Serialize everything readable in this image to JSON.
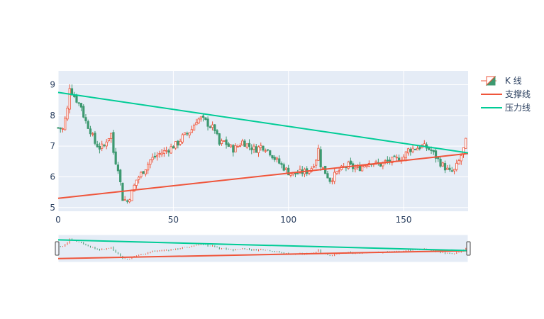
{
  "chart_data": {
    "type": "candlestick",
    "title": "",
    "xlabel": "",
    "ylabel": "",
    "xlim": [
      0,
      178
    ],
    "ylim": [
      4.88,
      9.45
    ],
    "x_ticks": [
      0,
      50,
      100,
      150
    ],
    "y_ticks": [
      5,
      6,
      7,
      8,
      9
    ],
    "grid": true,
    "legend_position": "top-right",
    "legend": [
      {
        "label": "K 线",
        "kind": "candlestick"
      },
      {
        "label": "支撑线",
        "kind": "line",
        "color": "#EF553B"
      },
      {
        "label": "压力线",
        "kind": "line",
        "color": "#00CC96"
      }
    ],
    "colors": {
      "increasing": "#EF553B",
      "decreasing": "#3D9970",
      "support": "#EF553B",
      "resistance": "#00CC96",
      "plot_bg": "#E5ECF6",
      "grid": "#ffffff"
    },
    "lines": {
      "support": {
        "x": [
          0,
          178
        ],
        "y": [
          5.3,
          6.76
        ]
      },
      "resistance": {
        "x": [
          0,
          178
        ],
        "y": [
          8.75,
          6.78
        ]
      }
    },
    "close_anchors": {
      "x": [
        0,
        2,
        4,
        5,
        6,
        8,
        10,
        11,
        12,
        14,
        15,
        16,
        18,
        20,
        21,
        22,
        23,
        24,
        25,
        26,
        27,
        28,
        30,
        32,
        34,
        36,
        38,
        40,
        42,
        44,
        46,
        48,
        50,
        52,
        54,
        56,
        58,
        60,
        62,
        64,
        66,
        68,
        69,
        70,
        72,
        74,
        76,
        78,
        80,
        82,
        84,
        86,
        88,
        90,
        92,
        94,
        96,
        98,
        100,
        102,
        104,
        106,
        108,
        110,
        112,
        113,
        114,
        116,
        118,
        120,
        122,
        124,
        126,
        128,
        130,
        132,
        134,
        136,
        138,
        140,
        142,
        144,
        146,
        148,
        150,
        152,
        154,
        156,
        158,
        160,
        162,
        164,
        166,
        168,
        170,
        172,
        174,
        176,
        177
      ],
      "y": [
        7.6,
        7.55,
        8.2,
        8.95,
        8.75,
        8.5,
        8.3,
        8.0,
        7.8,
        7.5,
        7.3,
        7.1,
        6.95,
        7.0,
        7.2,
        7.3,
        7.4,
        6.8,
        6.5,
        6.3,
        5.8,
        5.3,
        5.2,
        5.5,
        5.9,
        6.1,
        6.3,
        6.55,
        6.65,
        6.75,
        6.82,
        6.9,
        7.0,
        7.1,
        7.3,
        7.4,
        7.55,
        7.85,
        7.9,
        7.8,
        7.65,
        7.55,
        7.3,
        7.05,
        7.15,
        7.0,
        6.9,
        7.0,
        7.15,
        7.05,
        6.95,
        6.9,
        7.0,
        6.95,
        6.8,
        6.6,
        6.45,
        6.3,
        6.15,
        6.1,
        6.12,
        6.15,
        6.18,
        6.3,
        6.6,
        6.9,
        6.4,
        6.15,
        5.9,
        6.05,
        6.2,
        6.3,
        6.38,
        6.3,
        6.25,
        6.35,
        6.45,
        6.5,
        6.42,
        6.4,
        6.48,
        6.52,
        6.55,
        6.6,
        6.65,
        6.88,
        6.92,
        6.95,
        7.0,
        6.95,
        6.85,
        6.65,
        6.45,
        6.3,
        6.15,
        6.2,
        6.5,
        6.9,
        7.15
      ]
    }
  }
}
